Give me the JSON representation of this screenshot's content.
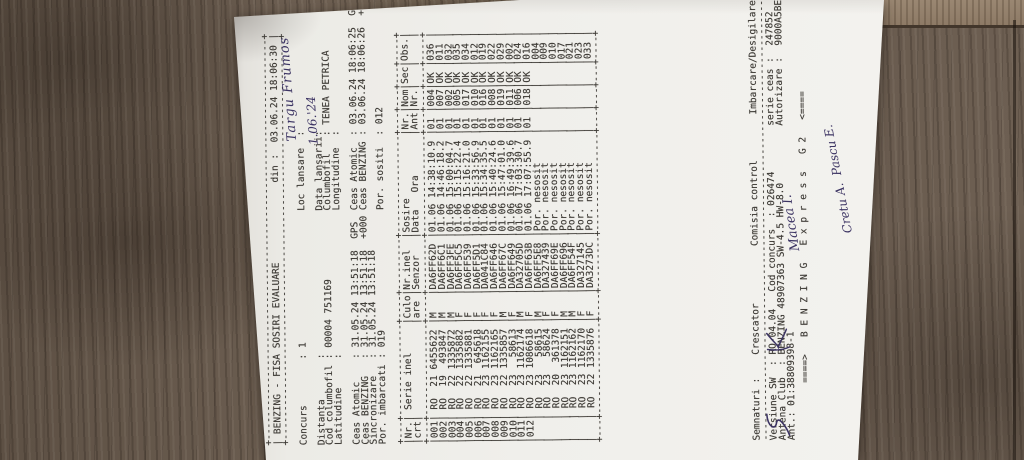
{
  "photo": {
    "wood_base_color": "#6a5c50",
    "wood_plank_light_color": "#97836e",
    "paper_color": "#f0efeb",
    "print_ink_color": "#3e3b36",
    "handwriting_ink_color": "#3c3463"
  },
  "document": {
    "title": "BENZING - FISA SOSIRI EVALUARE",
    "printed_on_label": "din :",
    "printed_on": "03.06.24 18:06:30",
    "fields": {
      "concurs": {
        "label": "Concurs",
        "value": "1"
      },
      "loc_lansare": {
        "label": "Loc lansare",
        "value": ""
      },
      "distanta": {
        "label": "Distanta",
        "value": ""
      },
      "data_lansarii": {
        "label": "Data lansarii",
        "value": ""
      },
      "cod_columbofil": {
        "label": "Cod columbofil",
        "value": "00004 751169"
      },
      "columbofil": {
        "label": "Columbofil",
        "value": "TENEA PETRICA"
      },
      "latitudine": {
        "label": "Latitudine",
        "value": ""
      },
      "longitudine": {
        "label": "Longitudine",
        "value": ""
      },
      "ceas_atomic_start": {
        "label": "Ceas Atomic",
        "value": "31.05.24 13:51:18",
        "suffix": "GPS"
      },
      "ceas_benzing_start": {
        "label": "Ceas BENZING",
        "value": "31.05.24 13:51:18",
        "suffix": "+000"
      },
      "sincronizare": {
        "label": "Sincronizare",
        "value": "31.05.24 13:51:18",
        "suffix": ""
      },
      "por_imbarcati": {
        "label": "Por. imbarcati",
        "value": "019"
      },
      "ceas_atomic_end": {
        "label": "Ceas Atomic",
        "value": "03.06.24 18:06:25",
        "suffix": "GPS"
      },
      "ceas_benzing_end": {
        "label": "Ceas BENZING",
        "value": "03.06.24 18:06:26",
        "suffix": "+001"
      },
      "por_sositi": {
        "label": "Por. sositi",
        "value": "012"
      }
    },
    "table": {
      "header_row1": [
        "Nr.",
        " Serie inel",
        "Culo",
        "Nr.inel",
        "Sosire",
        "Nr.",
        "Nom",
        "Sec",
        "Obs."
      ],
      "header_row2": [
        "crt",
        "",
        "are",
        "Senzor",
        "Data   Ora",
        "Ant",
        "Nr.",
        "",
        ""
      ],
      "rows": [
        {
          "crt": "001",
          "country": "RO",
          "year": "21",
          "serial": "6455622",
          "sex": "M",
          "sensor": "DA6FF62D",
          "date": "01.06",
          "time": "14:38:10.9",
          "ant": "01",
          "nom": "004",
          "sec": "OK",
          "obs": "036"
        },
        {
          "crt": "002",
          "country": "RO",
          "year": "19",
          "serial": "493847",
          "sex": "M",
          "sensor": "DA6FF6C1",
          "date": "01.06",
          "time": "14:46:18.2",
          "ant": "01",
          "nom": "007",
          "sec": "OK",
          "obs": "011"
        },
        {
          "crt": "003",
          "country": "RO",
          "year": "22",
          "serial": "1335872",
          "sex": "M",
          "sensor": "DA6FF3FE",
          "date": "01.06",
          "time": "15:00:04.7",
          "ant": "01",
          "nom": "002",
          "sec": "OK",
          "obs": "032"
        },
        {
          "crt": "004",
          "country": "RO",
          "year": "22",
          "serial": "1335882",
          "sex": "F",
          "sensor": "DA6FF5C5",
          "date": "01.06",
          "time": "15:15:22.4",
          "ant": "01",
          "nom": "005",
          "sec": "OK",
          "obs": "035"
        },
        {
          "crt": "005",
          "country": "RO",
          "year": "22",
          "serial": "1335881",
          "sex": "F",
          "sensor": "DA6FF539",
          "date": "01.06",
          "time": "15:16:21.0",
          "ant": "01",
          "nom": "017",
          "sec": "OK",
          "obs": "034"
        },
        {
          "crt": "006",
          "country": "RO",
          "year": "21",
          "serial": "645618",
          "sex": "F",
          "sensor": "DA6FF5D1",
          "date": "01.06",
          "time": "15:33:56.9",
          "ant": "01",
          "nom": "010",
          "sec": "OK",
          "obs": "012"
        },
        {
          "crt": "007",
          "country": "RO",
          "year": "23",
          "serial": "1162155",
          "sex": "F",
          "sensor": "DA041C84",
          "date": "01.06",
          "time": "15:34:35.5",
          "ant": "01",
          "nom": "016",
          "sec": "OK",
          "obs": "019"
        },
        {
          "crt": "008",
          "country": "RO",
          "year": "23",
          "serial": "1162165",
          "sex": "F",
          "sensor": "DA6FF646",
          "date": "01.06",
          "time": "15:40:24.6",
          "ant": "01",
          "nom": "008",
          "sec": "OK",
          "obs": "022"
        },
        {
          "crt": "009",
          "country": "RO",
          "year": "22",
          "serial": "1335857",
          "sex": "M",
          "sensor": "DA6FF67C",
          "date": "01.06",
          "time": "15:47:01.0",
          "ant": "01",
          "nom": "019",
          "sec": "OK",
          "obs": "029"
        },
        {
          "crt": "010",
          "country": "RO",
          "year": "23",
          "serial": "58613",
          "sex": "F",
          "sensor": "DA6FF649",
          "date": "01.06",
          "time": "16:49:39.6",
          "ant": "01",
          "nom": "011",
          "sec": "OK",
          "obs": "002"
        },
        {
          "crt": "011",
          "country": "RO",
          "year": "23",
          "serial": "1162174",
          "sex": "M",
          "sensor": "DA32705D",
          "date": "01.06",
          "time": "17:03:30.7",
          "ant": "01",
          "nom": "006",
          "sec": "OK",
          "obs": "024"
        },
        {
          "crt": "012",
          "country": "RO",
          "year": "23",
          "serial": "1086618",
          "sex": "F",
          "sensor": "DA6FF63B",
          "date": "01.06",
          "time": "17:07:55.9",
          "ant": "01",
          "nom": "018",
          "sec": "OK",
          "obs": "016"
        },
        {
          "crt": "",
          "country": "RO",
          "year": "23",
          "serial": "58615",
          "sex": "M",
          "sensor": "DA6FF5E8",
          "status": "Por. nesosit",
          "obs": "004"
        },
        {
          "crt": "",
          "country": "RO",
          "year": "23",
          "serial": "58624",
          "sex": "F",
          "sensor": "DA327439",
          "status": "Por. nesosit",
          "obs": "009"
        },
        {
          "crt": "",
          "country": "RO",
          "year": "20",
          "serial": "361378",
          "sex": "F",
          "sensor": "DA6FF69E",
          "status": "Por. nesosit",
          "obs": "010"
        },
        {
          "crt": "",
          "country": "RO",
          "year": "23",
          "serial": "1162151",
          "sex": "M",
          "sensor": "DA6FF696",
          "status": "Por. nesosit",
          "obs": "017"
        },
        {
          "crt": "",
          "country": "RO",
          "year": "23",
          "serial": "1162162",
          "sex": "M",
          "sensor": "DA6FF54F",
          "status": "Por. nesosit",
          "obs": "021"
        },
        {
          "crt": "",
          "country": "RO",
          "year": "23",
          "serial": "1162170",
          "sex": "F",
          "sensor": "DA327145",
          "status": "Por. nesosit",
          "obs": "023"
        },
        {
          "crt": "",
          "country": "RO",
          "year": "22",
          "serial": "1335876",
          "sex": "F",
          "sensor": "DA3273DC",
          "status": "Por. nesosit",
          "obs": "033"
        }
      ]
    },
    "footer": {
      "signatures_label": "Semnaturi :",
      "crescator_label": "Crescator",
      "comisia_label": "Comisia control",
      "imbarcare_label": "Imbarcare/Desigilare",
      "versiune_sw": {
        "label": "Versiune SW",
        "value": "RO-04.04"
      },
      "cod_concurs": {
        "label": "Cod concurs",
        "value": "026474"
      },
      "serie_ceas": {
        "label": "serie ceas",
        "value": "247852"
      },
      "antena_club": {
        "label": "Antena Club",
        "value": "BENZING 48907363 SW-4.5 HW-8.0"
      },
      "autorizare": {
        "label": "Autorizare",
        "value": "9000A5BE"
      },
      "ant": {
        "label": "Ant.:",
        "value": "01:38809398-1"
      },
      "brand_line": "====>   B E N Z I N G   E x p r e s s   G 2   <===="
    },
    "handwriting": {
      "loc_lansare": "Targu Frumos",
      "data_lansarii": "1.06.'24",
      "comisia_name_1": "Macea I.",
      "comisia_name_2": "Cretu A.  Pascu E."
    }
  }
}
